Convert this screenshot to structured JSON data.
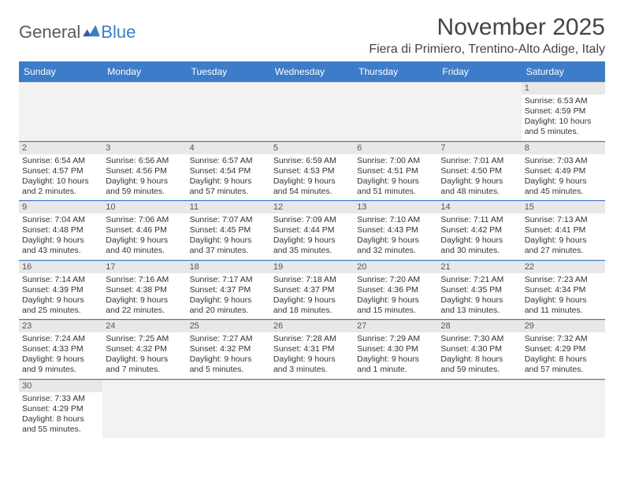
{
  "logo": {
    "text_general": "General",
    "text_blue": "Blue"
  },
  "title": "November 2025",
  "location": "Fiera di Primiero, Trentino-Alto Adige, Italy",
  "colors": {
    "header_bg": "#3d7cc9",
    "header_text": "#ffffff",
    "daynum_bg": "#e8e8e8",
    "empty_bg": "#f2f2f2",
    "border": "#3d7cc9",
    "text": "#333333"
  },
  "weekdays": [
    "Sunday",
    "Monday",
    "Tuesday",
    "Wednesday",
    "Thursday",
    "Friday",
    "Saturday"
  ],
  "weeks": [
    [
      null,
      null,
      null,
      null,
      null,
      null,
      {
        "n": "1",
        "sunrise": "Sunrise: 6:53 AM",
        "sunset": "Sunset: 4:59 PM",
        "day1": "Daylight: 10 hours",
        "day2": "and 5 minutes."
      }
    ],
    [
      {
        "n": "2",
        "sunrise": "Sunrise: 6:54 AM",
        "sunset": "Sunset: 4:57 PM",
        "day1": "Daylight: 10 hours",
        "day2": "and 2 minutes."
      },
      {
        "n": "3",
        "sunrise": "Sunrise: 6:56 AM",
        "sunset": "Sunset: 4:56 PM",
        "day1": "Daylight: 9 hours",
        "day2": "and 59 minutes."
      },
      {
        "n": "4",
        "sunrise": "Sunrise: 6:57 AM",
        "sunset": "Sunset: 4:54 PM",
        "day1": "Daylight: 9 hours",
        "day2": "and 57 minutes."
      },
      {
        "n": "5",
        "sunrise": "Sunrise: 6:59 AM",
        "sunset": "Sunset: 4:53 PM",
        "day1": "Daylight: 9 hours",
        "day2": "and 54 minutes."
      },
      {
        "n": "6",
        "sunrise": "Sunrise: 7:00 AM",
        "sunset": "Sunset: 4:51 PM",
        "day1": "Daylight: 9 hours",
        "day2": "and 51 minutes."
      },
      {
        "n": "7",
        "sunrise": "Sunrise: 7:01 AM",
        "sunset": "Sunset: 4:50 PM",
        "day1": "Daylight: 9 hours",
        "day2": "and 48 minutes."
      },
      {
        "n": "8",
        "sunrise": "Sunrise: 7:03 AM",
        "sunset": "Sunset: 4:49 PM",
        "day1": "Daylight: 9 hours",
        "day2": "and 45 minutes."
      }
    ],
    [
      {
        "n": "9",
        "sunrise": "Sunrise: 7:04 AM",
        "sunset": "Sunset: 4:48 PM",
        "day1": "Daylight: 9 hours",
        "day2": "and 43 minutes."
      },
      {
        "n": "10",
        "sunrise": "Sunrise: 7:06 AM",
        "sunset": "Sunset: 4:46 PM",
        "day1": "Daylight: 9 hours",
        "day2": "and 40 minutes."
      },
      {
        "n": "11",
        "sunrise": "Sunrise: 7:07 AM",
        "sunset": "Sunset: 4:45 PM",
        "day1": "Daylight: 9 hours",
        "day2": "and 37 minutes."
      },
      {
        "n": "12",
        "sunrise": "Sunrise: 7:09 AM",
        "sunset": "Sunset: 4:44 PM",
        "day1": "Daylight: 9 hours",
        "day2": "and 35 minutes."
      },
      {
        "n": "13",
        "sunrise": "Sunrise: 7:10 AM",
        "sunset": "Sunset: 4:43 PM",
        "day1": "Daylight: 9 hours",
        "day2": "and 32 minutes."
      },
      {
        "n": "14",
        "sunrise": "Sunrise: 7:11 AM",
        "sunset": "Sunset: 4:42 PM",
        "day1": "Daylight: 9 hours",
        "day2": "and 30 minutes."
      },
      {
        "n": "15",
        "sunrise": "Sunrise: 7:13 AM",
        "sunset": "Sunset: 4:41 PM",
        "day1": "Daylight: 9 hours",
        "day2": "and 27 minutes."
      }
    ],
    [
      {
        "n": "16",
        "sunrise": "Sunrise: 7:14 AM",
        "sunset": "Sunset: 4:39 PM",
        "day1": "Daylight: 9 hours",
        "day2": "and 25 minutes."
      },
      {
        "n": "17",
        "sunrise": "Sunrise: 7:16 AM",
        "sunset": "Sunset: 4:38 PM",
        "day1": "Daylight: 9 hours",
        "day2": "and 22 minutes."
      },
      {
        "n": "18",
        "sunrise": "Sunrise: 7:17 AM",
        "sunset": "Sunset: 4:37 PM",
        "day1": "Daylight: 9 hours",
        "day2": "and 20 minutes."
      },
      {
        "n": "19",
        "sunrise": "Sunrise: 7:18 AM",
        "sunset": "Sunset: 4:37 PM",
        "day1": "Daylight: 9 hours",
        "day2": "and 18 minutes."
      },
      {
        "n": "20",
        "sunrise": "Sunrise: 7:20 AM",
        "sunset": "Sunset: 4:36 PM",
        "day1": "Daylight: 9 hours",
        "day2": "and 15 minutes."
      },
      {
        "n": "21",
        "sunrise": "Sunrise: 7:21 AM",
        "sunset": "Sunset: 4:35 PM",
        "day1": "Daylight: 9 hours",
        "day2": "and 13 minutes."
      },
      {
        "n": "22",
        "sunrise": "Sunrise: 7:23 AM",
        "sunset": "Sunset: 4:34 PM",
        "day1": "Daylight: 9 hours",
        "day2": "and 11 minutes."
      }
    ],
    [
      {
        "n": "23",
        "sunrise": "Sunrise: 7:24 AM",
        "sunset": "Sunset: 4:33 PM",
        "day1": "Daylight: 9 hours",
        "day2": "and 9 minutes."
      },
      {
        "n": "24",
        "sunrise": "Sunrise: 7:25 AM",
        "sunset": "Sunset: 4:32 PM",
        "day1": "Daylight: 9 hours",
        "day2": "and 7 minutes."
      },
      {
        "n": "25",
        "sunrise": "Sunrise: 7:27 AM",
        "sunset": "Sunset: 4:32 PM",
        "day1": "Daylight: 9 hours",
        "day2": "and 5 minutes."
      },
      {
        "n": "26",
        "sunrise": "Sunrise: 7:28 AM",
        "sunset": "Sunset: 4:31 PM",
        "day1": "Daylight: 9 hours",
        "day2": "and 3 minutes."
      },
      {
        "n": "27",
        "sunrise": "Sunrise: 7:29 AM",
        "sunset": "Sunset: 4:30 PM",
        "day1": "Daylight: 9 hours",
        "day2": "and 1 minute."
      },
      {
        "n": "28",
        "sunrise": "Sunrise: 7:30 AM",
        "sunset": "Sunset: 4:30 PM",
        "day1": "Daylight: 8 hours",
        "day2": "and 59 minutes."
      },
      {
        "n": "29",
        "sunrise": "Sunrise: 7:32 AM",
        "sunset": "Sunset: 4:29 PM",
        "day1": "Daylight: 8 hours",
        "day2": "and 57 minutes."
      }
    ],
    [
      {
        "n": "30",
        "sunrise": "Sunrise: 7:33 AM",
        "sunset": "Sunset: 4:29 PM",
        "day1": "Daylight: 8 hours",
        "day2": "and 55 minutes."
      },
      null,
      null,
      null,
      null,
      null,
      null
    ]
  ]
}
